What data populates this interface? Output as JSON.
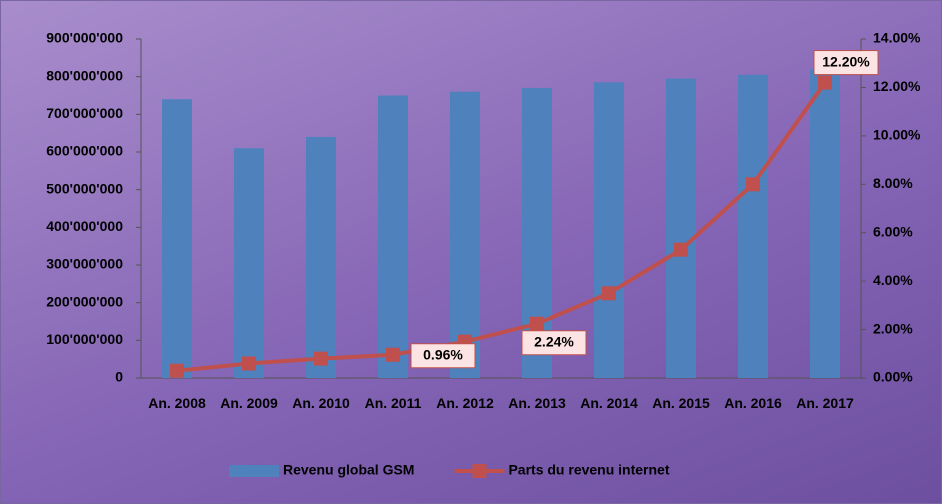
{
  "chart_data": {
    "type": "bar_line",
    "categories": [
      "An. 2008",
      "An. 2009",
      "An. 2010",
      "An. 2011",
      "An. 2012",
      "An. 2013",
      "An. 2014",
      "An. 2015",
      "An. 2016",
      "An. 2017"
    ],
    "series": [
      {
        "name": "Revenu global GSM",
        "color": "#4f81bd",
        "type": "bar",
        "values": [
          740000000,
          610000000,
          640000000,
          750000000,
          760000000,
          770000000,
          785000000,
          795000000,
          805000000,
          820000000
        ]
      },
      {
        "name": "Parts du revenu internet",
        "color": "#c0504d",
        "type": "line",
        "axis": "y2",
        "values": [
          0.3,
          0.6,
          0.8,
          0.96,
          1.5,
          2.24,
          3.5,
          5.3,
          8.0,
          12.2
        ],
        "value_labels": [
          null,
          null,
          null,
          "0.96%",
          null,
          "2.24%",
          null,
          null,
          null,
          "12.20%"
        ]
      }
    ],
    "ylim": [
      0,
      900000000
    ],
    "yticks": [
      0,
      {
        "value": 100000000,
        "label": "100'000'000"
      },
      {
        "value": 200000000,
        "label": "200'000'000"
      },
      {
        "value": 300000000,
        "label": "300'000'000"
      },
      {
        "value": 400000000,
        "label": "400'000'000"
      },
      {
        "value": 500000000,
        "label": "500'000'000"
      },
      {
        "value": 600000000,
        "label": "600'000'000"
      },
      {
        "value": 700000000,
        "label": "700'000'000"
      },
      {
        "value": 800000000,
        "label": "800'000'000"
      },
      {
        "value": 900000000,
        "label": "900'000'000"
      }
    ],
    "y2lim": [
      0,
      14
    ],
    "y2ticks": [
      {
        "value": 0,
        "label": "0.00%"
      },
      {
        "value": 2,
        "label": "2.00%"
      },
      {
        "value": 4,
        "label": "4.00%"
      },
      {
        "value": 6,
        "label": "6.00%"
      },
      {
        "value": 8,
        "label": "8.00%"
      },
      {
        "value": 10,
        "label": "10.00%"
      },
      {
        "value": 12,
        "label": "12.00%"
      },
      {
        "value": 14,
        "label": "14.00%"
      }
    ],
    "grid": false,
    "legend": "bottom"
  }
}
